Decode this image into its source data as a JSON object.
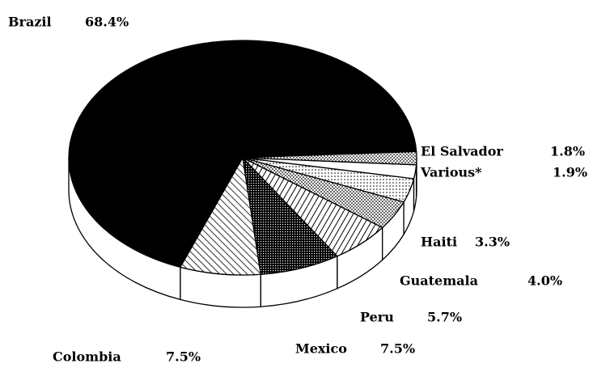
{
  "chart_data": {
    "type": "pie3d",
    "categories": [
      "Brazil",
      "Colombia",
      "Mexico",
      "Peru",
      "Guatemala",
      "Haiti",
      "Various*",
      "El Salvador"
    ],
    "values": [
      68.4,
      7.5,
      7.5,
      5.7,
      4.0,
      3.3,
      1.9,
      1.8
    ],
    "value_labels": [
      "68.4%",
      "7.5%",
      "7.5%",
      "5.7%",
      "4.0%",
      "3.3%",
      "1.9%",
      "1.8%"
    ]
  }
}
